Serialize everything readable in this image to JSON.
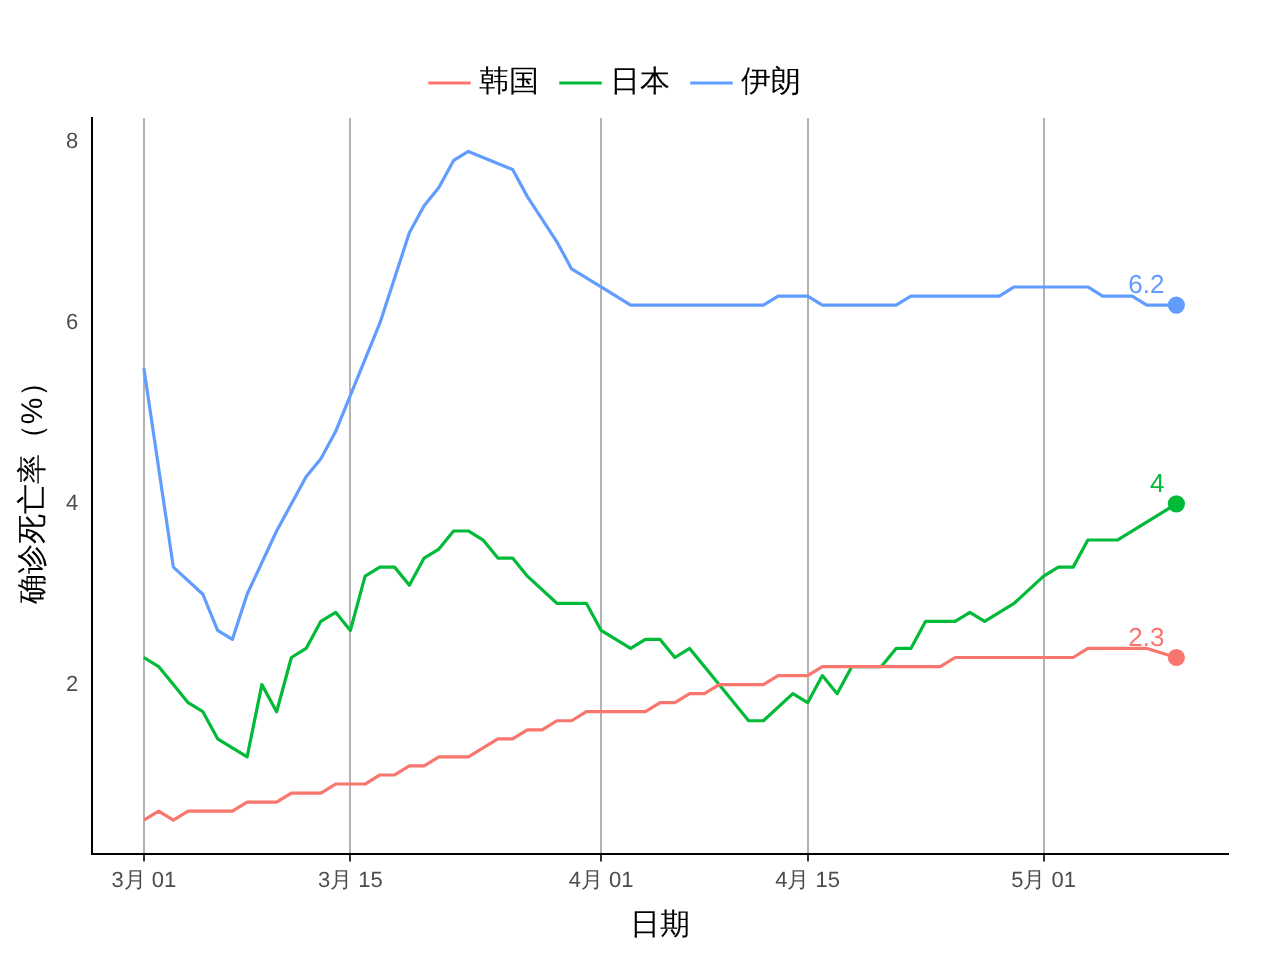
{
  "chart_data": {
    "type": "line",
    "xlabel": "日期",
    "ylabel": "确诊死亡率（%）",
    "xlim": [
      "--02-25T12:00",
      "--05-13T12:00"
    ],
    "xticks": [
      {
        "value": "--03-01",
        "label": "3月 01"
      },
      {
        "value": "--03-15",
        "label": "3月 15"
      },
      {
        "value": "--04-01",
        "label": "4月 01"
      },
      {
        "value": "--04-15",
        "label": "4月 15"
      },
      {
        "value": "--05-01",
        "label": "5月 01"
      }
    ],
    "ylim": [
      0.13,
      8.27
    ],
    "yticks": [
      2,
      4,
      6,
      8
    ],
    "grid": "x",
    "legend": "top",
    "marker": "none",
    "series": [
      {
        "name": "韩国",
        "color": "#f8766d",
        "x": [
          "--03-01",
          "--03-02",
          "--03-03",
          "--03-04",
          "--03-07",
          "--03-08",
          "--03-10",
          "--03-11",
          "--03-13",
          "--03-14",
          "--03-16",
          "--03-17",
          "--03-18",
          "--03-19",
          "--03-20",
          "--03-21",
          "--03-23",
          "--03-24",
          "--03-25",
          "--03-26",
          "--03-27",
          "--03-28",
          "--03-29",
          "--03-30",
          "--03-31",
          "--04-04",
          "--04-05",
          "--04-06",
          "--04-07",
          "--04-08",
          "--04-09",
          "--04-12",
          "--04-13",
          "--04-15",
          "--04-16",
          "--04-24",
          "--04-25",
          "--05-03",
          "--05-04",
          "--05-08",
          "--05-10"
        ],
        "values": [
          0.5,
          0.6,
          0.5,
          0.6,
          0.6,
          0.7,
          0.7,
          0.8,
          0.8,
          0.9,
          0.9,
          1.0,
          1.0,
          1.1,
          1.1,
          1.2,
          1.2,
          1.3,
          1.4,
          1.4,
          1.5,
          1.5,
          1.6,
          1.6,
          1.7,
          1.7,
          1.8,
          1.8,
          1.9,
          1.9,
          2.0,
          2.0,
          2.1,
          2.1,
          2.2,
          2.2,
          2.3,
          2.3,
          2.4,
          2.4,
          2.3
        ]
      },
      {
        "name": "日本",
        "color": "#00ba38",
        "x": [
          "--03-01",
          "--03-02",
          "--03-03",
          "--03-04",
          "--03-05",
          "--03-06",
          "--03-07",
          "--03-08",
          "--03-09",
          "--03-10",
          "--03-11",
          "--03-12",
          "--03-13",
          "--03-14",
          "--03-15",
          "--03-16",
          "--03-17",
          "--03-18",
          "--03-19",
          "--03-20",
          "--03-21",
          "--03-22",
          "--03-23",
          "--03-24",
          "--03-25",
          "--03-26",
          "--03-27",
          "--03-29",
          "--03-31",
          "--04-01",
          "--04-03",
          "--04-04",
          "--04-05",
          "--04-06",
          "--04-07",
          "--04-09",
          "--04-11",
          "--04-12",
          "--04-14",
          "--04-15",
          "--04-16",
          "--04-17",
          "--04-18",
          "--04-20",
          "--04-21",
          "--04-22",
          "--04-23",
          "--04-25",
          "--04-26",
          "--04-27",
          "--04-29",
          "--05-01",
          "--05-02",
          "--05-03",
          "--05-04",
          "--05-06",
          "--05-10"
        ],
        "values": [
          2.3,
          2.2,
          2.0,
          1.8,
          1.7,
          1.4,
          1.3,
          1.2,
          2.0,
          1.7,
          2.3,
          2.4,
          2.7,
          2.8,
          2.6,
          3.2,
          3.3,
          3.3,
          3.1,
          3.4,
          3.5,
          3.7,
          3.7,
          3.6,
          3.4,
          3.4,
          3.2,
          2.9,
          2.9,
          2.6,
          2.4,
          2.5,
          2.5,
          2.3,
          2.4,
          2.0,
          1.6,
          1.6,
          1.9,
          1.8,
          2.1,
          1.9,
          2.2,
          2.2,
          2.4,
          2.4,
          2.7,
          2.7,
          2.8,
          2.7,
          2.9,
          3.2,
          3.3,
          3.3,
          3.6,
          3.6,
          4.0
        ]
      },
      {
        "name": "伊朗",
        "color": "#619cff",
        "x": [
          "--03-01",
          "--03-03",
          "--03-05",
          "--03-06",
          "--03-07",
          "--03-08",
          "--03-10",
          "--03-12",
          "--03-13",
          "--03-14",
          "--03-15",
          "--03-17",
          "--03-18",
          "--03-19",
          "--03-20",
          "--03-21",
          "--03-22",
          "--03-23",
          "--03-26",
          "--03-27",
          "--03-29",
          "--03-30",
          "--04-01",
          "--04-03",
          "--04-12",
          "--04-13",
          "--04-15",
          "--04-16",
          "--04-21",
          "--04-22",
          "--04-28",
          "--04-29",
          "--05-04",
          "--05-05",
          "--05-07",
          "--05-08",
          "--05-10"
        ],
        "values": [
          5.5,
          3.3,
          3.0,
          2.6,
          2.5,
          3.0,
          3.7,
          4.3,
          4.5,
          4.8,
          5.2,
          6.0,
          6.5,
          7.0,
          7.3,
          7.5,
          7.8,
          7.9,
          7.7,
          7.4,
          6.9,
          6.6,
          6.4,
          6.2,
          6.2,
          6.3,
          6.3,
          6.2,
          6.2,
          6.3,
          6.3,
          6.4,
          6.4,
          6.3,
          6.3,
          6.2,
          6.2
        ]
      },
      {
        "type": "scatter",
        "marker": "circle",
        "color": "#f8766d",
        "x": [
          "--05-10"
        ],
        "values": [
          2.3
        ]
      },
      {
        "type": "scatter",
        "marker": "circle",
        "color": "#00ba38",
        "x": [
          "--05-10"
        ],
        "values": [
          4.0
        ]
      },
      {
        "type": "scatter",
        "marker": "circle",
        "color": "#619cff",
        "x": [
          "--05-10"
        ],
        "values": [
          6.2
        ]
      }
    ],
    "annotations": [
      {
        "text": "2.3",
        "x": "--05-10",
        "y": 2.3
      },
      {
        "text": "4",
        "x": "--05-10",
        "y": 4.0
      },
      {
        "text": "6.2",
        "x": "--05-10",
        "y": 6.2
      }
    ]
  }
}
